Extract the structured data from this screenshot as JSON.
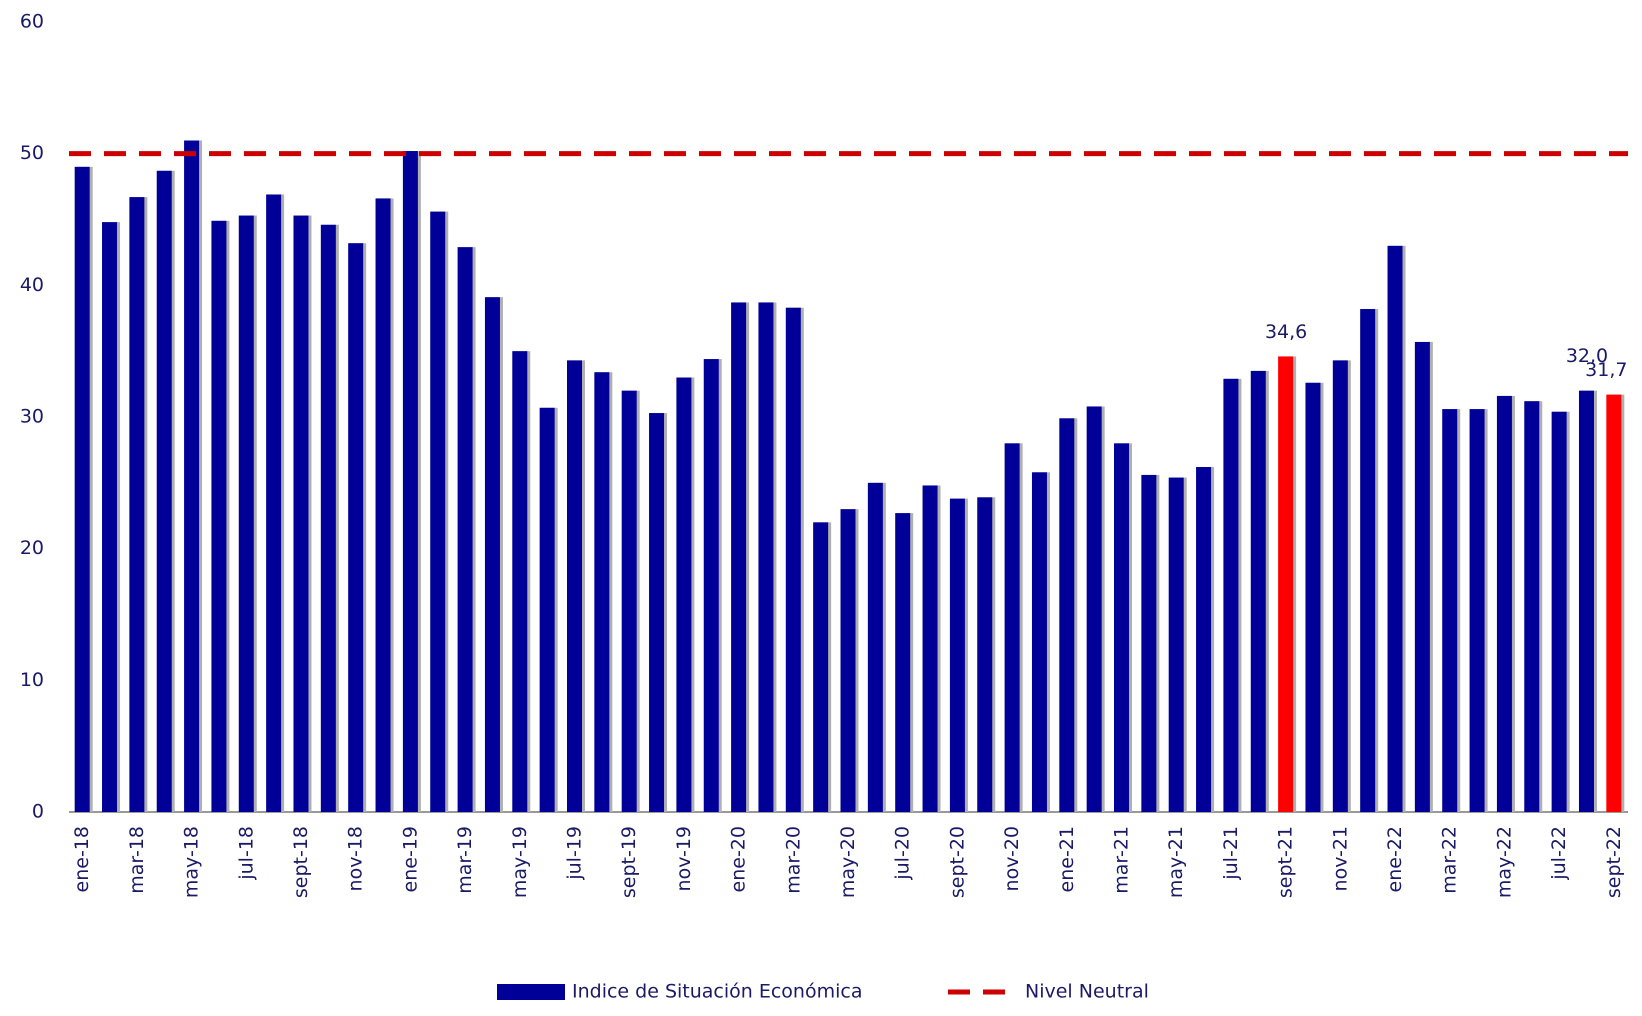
{
  "chart_data": {
    "type": "bar",
    "categories": [
      "ene-18",
      null,
      "mar-18",
      null,
      "may-18",
      null,
      "jul-18",
      null,
      "sept-18",
      null,
      "nov-18",
      null,
      "ene-19",
      null,
      "mar-19",
      null,
      "may-19",
      null,
      "jul-19",
      null,
      "sept-19",
      null,
      "nov-19",
      null,
      "ene-20",
      null,
      "mar-20",
      null,
      "may-20",
      null,
      "jul-20",
      null,
      "sept-20",
      null,
      "nov-20",
      null,
      "ene-21",
      null,
      "mar-21",
      null,
      "may-21",
      null,
      "jul-21",
      null,
      "sept-21",
      null,
      "nov-21",
      null,
      "ene-22",
      null,
      "mar-22",
      null,
      "may-22",
      null,
      "jul-22",
      null,
      "sept-22"
    ],
    "series": [
      {
        "name": "Indice de Situación Económica",
        "color": "#000099",
        "values": [
          49.0,
          44.8,
          46.7,
          48.7,
          51.0,
          44.9,
          45.3,
          46.9,
          45.3,
          44.6,
          43.2,
          46.6,
          50.2,
          45.6,
          42.9,
          39.1,
          35.0,
          30.7,
          34.3,
          33.4,
          32.0,
          30.3,
          33.0,
          34.4,
          38.7,
          38.7,
          38.3,
          22.0,
          23.0,
          25.0,
          22.7,
          24.8,
          23.8,
          23.9,
          28.0,
          25.8,
          29.9,
          30.8,
          28.0,
          25.6,
          25.4,
          26.2,
          32.9,
          33.5,
          34.6,
          32.6,
          34.3,
          38.2,
          43.0,
          35.7,
          30.6,
          30.6,
          31.6,
          31.2,
          30.4,
          32.0,
          31.7
        ],
        "colors": [
          "#000099",
          "#000099",
          "#000099",
          "#000099",
          "#000099",
          "#000099",
          "#000099",
          "#000099",
          "#000099",
          "#000099",
          "#000099",
          "#000099",
          "#000099",
          "#000099",
          "#000099",
          "#000099",
          "#000099",
          "#000099",
          "#000099",
          "#000099",
          "#000099",
          "#000099",
          "#000099",
          "#000099",
          "#000099",
          "#000099",
          "#000099",
          "#000099",
          "#000099",
          "#000099",
          "#000099",
          "#000099",
          "#000099",
          "#000099",
          "#000099",
          "#000099",
          "#000099",
          "#000099",
          "#000099",
          "#000099",
          "#000099",
          "#000099",
          "#000099",
          "#000099",
          "#ff0000",
          "#000099",
          "#000099",
          "#000099",
          "#000099",
          "#000099",
          "#000099",
          "#000099",
          "#000099",
          "#000099",
          "#000099",
          "#000099",
          "#ff0000"
        ],
        "value_labels": [
          null,
          null,
          null,
          null,
          null,
          null,
          null,
          null,
          null,
          null,
          null,
          null,
          null,
          null,
          null,
          null,
          null,
          null,
          null,
          null,
          null,
          null,
          null,
          null,
          null,
          null,
          null,
          null,
          null,
          null,
          null,
          null,
          null,
          null,
          null,
          null,
          null,
          null,
          null,
          null,
          null,
          null,
          null,
          null,
          "34,6",
          null,
          null,
          null,
          null,
          null,
          null,
          null,
          null,
          null,
          null,
          "32,0",
          "31,7"
        ]
      }
    ],
    "reference_line": {
      "name": "Nivel Neutral",
      "value": 50,
      "color": "#cc0000",
      "style": "dashed"
    },
    "ylim": [
      0,
      60
    ],
    "yticks": [
      0,
      10,
      20,
      30,
      40,
      50,
      60
    ],
    "grid": false,
    "legend": "bottom"
  }
}
